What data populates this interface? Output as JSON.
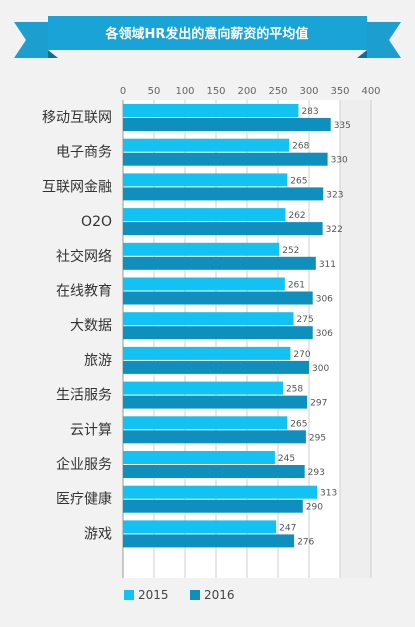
{
  "chart_data": {
    "type": "bar",
    "orientation": "horizontal",
    "title": "各领域HR发出的意向薪资的平均值",
    "xlim": [
      0,
      400
    ],
    "ticks": [
      0,
      50,
      100,
      150,
      200,
      250,
      300,
      350,
      400
    ],
    "grid": true,
    "legend_position": "bottom-left",
    "categories": [
      "移动互联网",
      "电子商务",
      "互联网金融",
      "O2O",
      "社交网络",
      "在线教育",
      "大数据",
      "旅游",
      "生活服务",
      "云计算",
      "企业服务",
      "医疗健康",
      "游戏"
    ],
    "series": [
      {
        "name": "2015",
        "color": "#12c2f2",
        "values": [
          283,
          268,
          265,
          262,
          252,
          261,
          275,
          270,
          258,
          265,
          245,
          313,
          247
        ]
      },
      {
        "name": "2016",
        "color": "#0f8fbd",
        "values": [
          335,
          330,
          323,
          322,
          311,
          306,
          306,
          300,
          297,
          295,
          293,
          290,
          276
        ]
      }
    ]
  },
  "colors": {
    "banner": "#1aa3d6",
    "banner_fold": "#0d6f98",
    "plot_bg": "#ffffff",
    "page_bg": "#f2f2f2"
  }
}
